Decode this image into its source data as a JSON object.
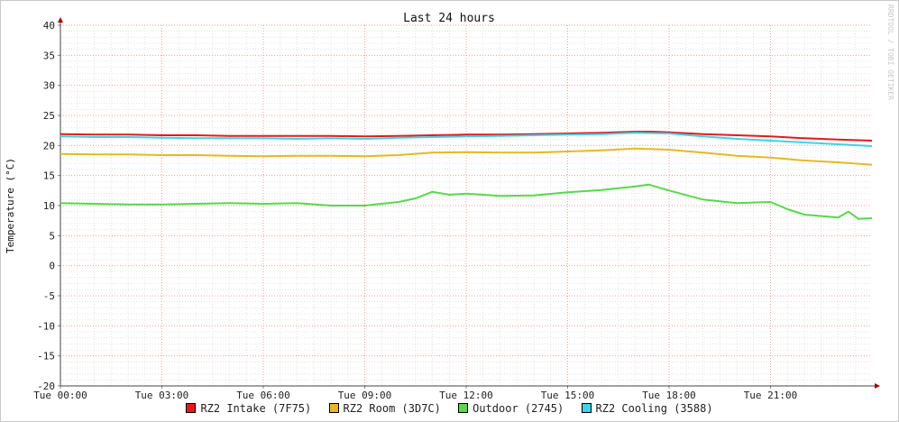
{
  "chart_data": {
    "type": "line",
    "title": "Last 24 hours",
    "ylabel": "Temperature (°C)",
    "xlabel": "",
    "watermark": "RRDTOOL / TOBI OETIKER",
    "ylim": [
      -20,
      40
    ],
    "yticks": [
      40,
      35,
      30,
      25,
      20,
      15,
      10,
      5,
      0,
      -5,
      -10,
      -15,
      -20
    ],
    "xlim": [
      0,
      24
    ],
    "xtick_values": [
      0,
      3,
      6,
      9,
      12,
      15,
      18,
      21
    ],
    "xticks": [
      "Tue 00:00",
      "Tue 03:00",
      "Tue 06:00",
      "Tue 09:00",
      "Tue 12:00",
      "Tue 15:00",
      "Tue 18:00",
      "Tue 21:00"
    ],
    "grid": true,
    "legend_position": "bottom",
    "series": [
      {
        "name": "RZ2 Intake (7F75)",
        "color": "#e31a1c",
        "x": [
          0,
          1,
          2,
          3,
          4,
          5,
          6,
          7,
          8,
          9,
          10,
          11,
          12,
          13,
          14,
          15,
          16,
          17,
          17.5,
          18,
          19,
          20,
          21,
          22,
          23,
          24
        ],
        "values": [
          21.9,
          21.8,
          21.8,
          21.7,
          21.7,
          21.6,
          21.6,
          21.6,
          21.6,
          21.5,
          21.6,
          21.7,
          21.8,
          21.8,
          21.9,
          22.0,
          22.1,
          22.3,
          22.3,
          22.2,
          21.9,
          21.7,
          21.5,
          21.2,
          21.0,
          20.8
        ]
      },
      {
        "name": "RZ2 Room (3D7C)",
        "color": "#e6b922",
        "x": [
          0,
          1,
          2,
          3,
          4,
          5,
          6,
          7,
          8,
          9,
          10,
          11,
          12,
          13,
          14,
          15,
          16,
          17,
          18,
          19,
          20,
          21,
          22,
          23,
          24
        ],
        "values": [
          18.6,
          18.5,
          18.5,
          18.4,
          18.4,
          18.3,
          18.2,
          18.3,
          18.3,
          18.2,
          18.4,
          18.8,
          18.9,
          18.8,
          18.8,
          19.0,
          19.2,
          19.5,
          19.3,
          18.8,
          18.3,
          18.0,
          17.5,
          17.2,
          16.8
        ]
      },
      {
        "name": "Outdoor (2745)",
        "color": "#56d94a",
        "x": [
          0,
          1,
          2,
          3,
          4,
          5,
          6,
          7,
          8,
          9,
          10,
          10.5,
          11,
          11.5,
          12,
          13,
          14,
          15,
          16,
          17,
          17.4,
          18,
          19,
          20,
          21,
          21.5,
          22,
          23,
          23.3,
          23.6,
          24
        ],
        "values": [
          10.4,
          10.3,
          10.2,
          10.2,
          10.3,
          10.4,
          10.3,
          10.4,
          10.0,
          10.0,
          10.6,
          11.2,
          12.3,
          11.8,
          12.0,
          11.6,
          11.7,
          12.2,
          12.6,
          13.2,
          13.5,
          12.5,
          11.0,
          10.4,
          10.6,
          9.4,
          8.5,
          8.0,
          9.0,
          7.8,
          7.9
        ]
      },
      {
        "name": "RZ2 Cooling (3588)",
        "color": "#3fd3e6",
        "x": [
          0,
          1,
          2,
          3,
          4,
          5,
          6,
          7,
          8,
          9,
          10,
          11,
          12,
          13,
          14,
          15,
          16,
          17,
          18,
          19,
          20,
          21,
          22,
          23,
          24
        ],
        "values": [
          21.5,
          21.4,
          21.4,
          21.3,
          21.2,
          21.2,
          21.2,
          21.1,
          21.2,
          21.1,
          21.3,
          21.4,
          21.5,
          21.6,
          21.7,
          21.8,
          21.9,
          22.1,
          22.0,
          21.5,
          21.1,
          20.8,
          20.5,
          20.2,
          19.9
        ]
      }
    ]
  }
}
